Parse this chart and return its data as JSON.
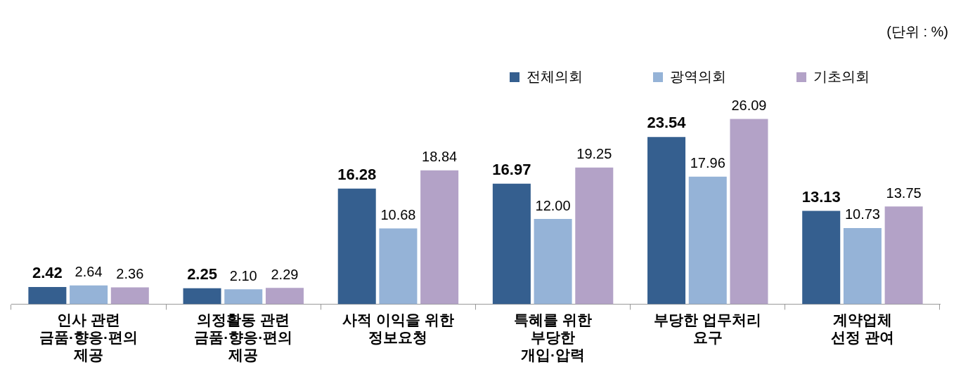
{
  "chart_data": {
    "type": "bar",
    "categories": [
      "인사 관련\n금품·향응·편의\n제공",
      "의정활동 관련\n금품·향응·편의\n제공",
      "사적 이익을 위한\n정보요청",
      "특혜를 위한\n부당한\n개입·압력",
      "부당한 업무처리\n요구",
      "계약업체\n선정 관여"
    ],
    "series": [
      {
        "name": "전체의회",
        "color": "#355f8f",
        "values": [
          2.42,
          2.25,
          16.28,
          16.97,
          23.54,
          13.13
        ],
        "value_labels": [
          "2.42",
          "2.25",
          "16.28",
          "16.97",
          "23.54",
          "13.13"
        ]
      },
      {
        "name": "광역의회",
        "color": "#95b3d7",
        "values": [
          2.64,
          2.1,
          10.68,
          12.0,
          17.96,
          10.73
        ],
        "value_labels": [
          "2.64",
          "2.10",
          "10.68",
          "12.00",
          "17.96",
          "10.73"
        ]
      },
      {
        "name": "기초의회",
        "color": "#b3a2c7",
        "values": [
          2.36,
          2.29,
          18.84,
          19.25,
          26.09,
          13.75
        ],
        "value_labels": [
          "2.36",
          "2.29",
          "18.84",
          "19.25",
          "26.09",
          "13.75"
        ]
      }
    ],
    "legend": "top right",
    "annotations": [
      "(단위 : %)"
    ]
  }
}
